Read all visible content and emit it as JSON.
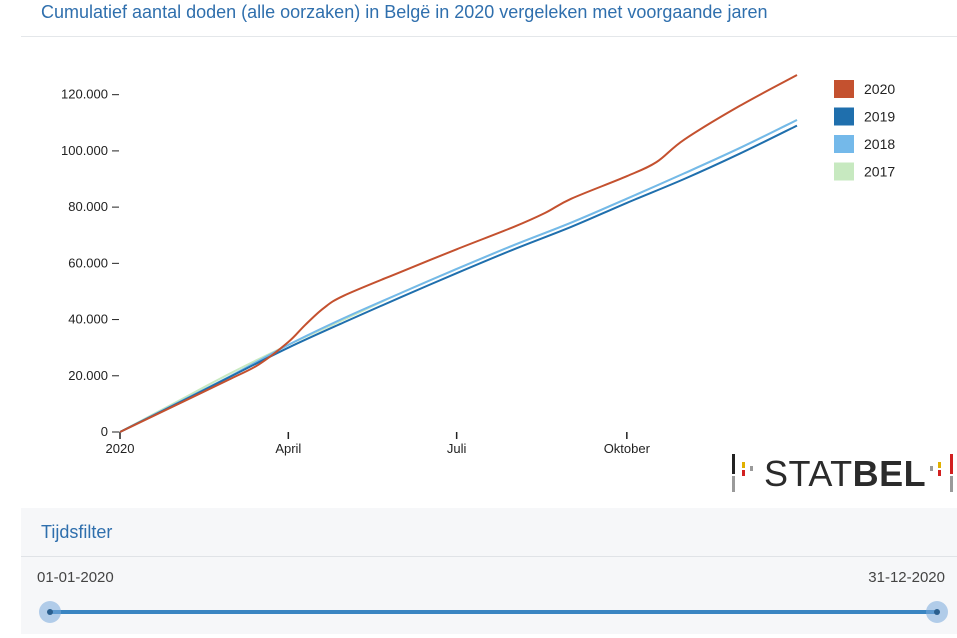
{
  "header": {
    "title": "Cumulatief aantal doden (alle oorzaken) in Belgë in 2020 vergeleken met voorgaande jaren"
  },
  "chart_data": {
    "type": "line",
    "title": "Cumulatief aantal doden (alle oorzaken) in Belgë in 2020 vergeleken met voorgaande jaren",
    "xlabel": "",
    "ylabel": "",
    "x_ticks": [
      {
        "label": "2020",
        "day": 0
      },
      {
        "label": "April",
        "day": 91
      },
      {
        "label": "Juli",
        "day": 182
      },
      {
        "label": "Oktober",
        "day": 274
      }
    ],
    "y_ticks": [
      {
        "label": "0",
        "value": 0
      },
      {
        "label": "20.000",
        "value": 20000
      },
      {
        "label": "40.000",
        "value": 40000
      },
      {
        "label": "60.000",
        "value": 60000
      },
      {
        "label": "80.000",
        "value": 80000
      },
      {
        "label": "100.000",
        "value": 100000
      },
      {
        "label": "120.000",
        "value": 120000
      }
    ],
    "xlim": [
      0,
      366
    ],
    "ylim": [
      0,
      127000
    ],
    "legend_position": "top-right",
    "series": [
      {
        "name": "2017",
        "color": "#c7e9c0",
        "points": [
          [
            0,
            0
          ],
          [
            30,
            10500
          ],
          [
            60,
            21000
          ],
          [
            91,
            31000
          ],
          [
            121,
            40000
          ],
          [
            152,
            49500
          ],
          [
            182,
            58000
          ],
          [
            213,
            66500
          ],
          [
            244,
            74500
          ],
          [
            274,
            83000
          ],
          [
            305,
            92000
          ],
          [
            335,
            101000
          ],
          [
            366,
            111000
          ]
        ]
      },
      {
        "name": "2018",
        "color": "#74b9ea",
        "points": [
          [
            0,
            0
          ],
          [
            30,
            10000
          ],
          [
            60,
            20000
          ],
          [
            91,
            31000
          ],
          [
            121,
            40500
          ],
          [
            152,
            49500
          ],
          [
            182,
            58000
          ],
          [
            213,
            66500
          ],
          [
            244,
            74500
          ],
          [
            274,
            83000
          ],
          [
            305,
            92000
          ],
          [
            335,
            101000
          ],
          [
            366,
            111000
          ]
        ]
      },
      {
        "name": "2019",
        "color": "#1f6fad",
        "points": [
          [
            0,
            0
          ],
          [
            30,
            9800
          ],
          [
            60,
            19800
          ],
          [
            91,
            30000
          ],
          [
            121,
            39000
          ],
          [
            152,
            48000
          ],
          [
            182,
            56500
          ],
          [
            213,
            65000
          ],
          [
            244,
            73000
          ],
          [
            274,
            81500
          ],
          [
            305,
            90000
          ],
          [
            335,
            99000
          ],
          [
            366,
            109000
          ]
        ]
      },
      {
        "name": "2020",
        "color": "#c4512f",
        "points": [
          [
            0,
            0
          ],
          [
            30,
            9500
          ],
          [
            60,
            19000
          ],
          [
            75,
            24000
          ],
          [
            91,
            32000
          ],
          [
            100,
            38000
          ],
          [
            110,
            44000
          ],
          [
            121,
            48500
          ],
          [
            152,
            57000
          ],
          [
            182,
            65000
          ],
          [
            213,
            73000
          ],
          [
            230,
            78000
          ],
          [
            244,
            83000
          ],
          [
            274,
            91000
          ],
          [
            290,
            96000
          ],
          [
            305,
            104000
          ],
          [
            335,
            116000
          ],
          [
            366,
            127000
          ]
        ]
      }
    ],
    "legend_order": [
      "2020",
      "2019",
      "2018",
      "2017"
    ]
  },
  "logo": {
    "text_light": "STAT",
    "text_bold": "BEL"
  },
  "filter": {
    "title": "Tijdsfilter",
    "start_date": "01-01-2020",
    "end_date": "31-12-2020"
  }
}
